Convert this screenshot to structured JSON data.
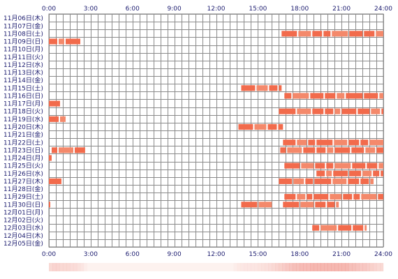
{
  "colors": {
    "activity": "#f26b4c",
    "activity_alt": "#f4896b",
    "grid": "#8a8a8a",
    "label": "#1a1a6e",
    "heat": "#e85a4f"
  },
  "chart_data": {
    "type": "timeline",
    "title": "",
    "x_ticks": [
      "0:00",
      "3:00",
      "6:00",
      "9:00",
      "12:00",
      "15:00",
      "18:00",
      "21:00",
      "24:00"
    ],
    "xlim": [
      0,
      24
    ],
    "grid": true,
    "rows": [
      {
        "label": "11月06日(木)",
        "segments": []
      },
      {
        "label": "11月07日(金)",
        "segments": []
      },
      {
        "label": "11月08日(土)",
        "segments": [
          [
            16.7,
            24.0
          ]
        ]
      },
      {
        "label": "11月09日(日)",
        "segments": [
          [
            0.0,
            2.3
          ]
        ]
      },
      {
        "label": "11月10日(月)",
        "segments": []
      },
      {
        "label": "11月11日(火)",
        "segments": []
      },
      {
        "label": "11月12日(水)",
        "segments": []
      },
      {
        "label": "11月13日(木)",
        "segments": []
      },
      {
        "label": "11月14日(金)",
        "segments": []
      },
      {
        "label": "11月15日(土)",
        "segments": [
          [
            13.8,
            16.7
          ]
        ]
      },
      {
        "label": "11月16日(日)",
        "segments": [
          [
            16.9,
            24.0
          ]
        ]
      },
      {
        "label": "11月17日(月)",
        "segments": [
          [
            0.0,
            0.8
          ]
        ]
      },
      {
        "label": "11月18日(火)",
        "segments": [
          [
            16.5,
            24.0
          ]
        ]
      },
      {
        "label": "11月19日(水)",
        "segments": [
          [
            0.0,
            1.2
          ]
        ]
      },
      {
        "label": "11月20日(木)",
        "segments": [
          [
            13.6,
            16.8
          ]
        ]
      },
      {
        "label": "11月21日(金)",
        "segments": []
      },
      {
        "label": "11月22日(土)",
        "segments": [
          [
            16.8,
            24.0
          ]
        ]
      },
      {
        "label": "11月23日(日)",
        "segments": [
          [
            0.2,
            2.6
          ],
          [
            16.6,
            24.0
          ]
        ]
      },
      {
        "label": "11月24日(月)",
        "segments": [
          [
            0.0,
            0.2
          ]
        ]
      },
      {
        "label": "11月25日(火)",
        "segments": [
          [
            16.9,
            24.0
          ]
        ]
      },
      {
        "label": "11月26日(水)",
        "segments": [
          [
            19.2,
            24.0
          ]
        ]
      },
      {
        "label": "11月27日(木)",
        "segments": [
          [
            0.0,
            0.9
          ],
          [
            16.5,
            23.3
          ]
        ]
      },
      {
        "label": "11月28日(金)",
        "segments": []
      },
      {
        "label": "11月29日(土)",
        "segments": [
          [
            16.9,
            24.0
          ]
        ]
      },
      {
        "label": "11月30日(日)",
        "segments": [
          [
            0.0,
            0.1
          ],
          [
            13.8,
            16.0
          ],
          [
            16.8,
            20.8
          ]
        ]
      },
      {
        "label": "12月01日(月)",
        "segments": []
      },
      {
        "label": "12月02日(火)",
        "segments": []
      },
      {
        "label": "12月03日(水)",
        "segments": [
          [
            18.9,
            22.8
          ]
        ]
      },
      {
        "label": "12月04日(木)",
        "segments": []
      },
      {
        "label": "12月05日(金)",
        "segments": []
      }
    ],
    "heatmap_strip": {
      "type": "heatmap",
      "bins_per_hour": 4,
      "intensity": [
        0.3,
        0.35,
        0.35,
        0.3,
        0.3,
        0.3,
        0.25,
        0.25,
        0.2,
        0.15,
        0.05,
        0,
        0,
        0,
        0,
        0,
        0,
        0,
        0,
        0,
        0,
        0,
        0,
        0,
        0,
        0,
        0,
        0,
        0,
        0,
        0,
        0,
        0,
        0,
        0,
        0,
        0,
        0,
        0,
        0,
        0,
        0,
        0,
        0,
        0,
        0,
        0,
        0,
        0,
        0,
        0,
        0,
        0,
        0.05,
        0.1,
        0.12,
        0.15,
        0.15,
        0.15,
        0.15,
        0.18,
        0.2,
        0.22,
        0.25,
        0.3,
        0.35,
        0.4,
        0.45,
        0.5,
        0.55,
        0.6,
        0.6,
        0.65,
        0.65,
        0.65,
        0.7,
        0.7,
        0.7,
        0.7,
        0.7,
        0.7,
        0.7,
        0.7,
        0.7,
        0.7,
        0.7,
        0.6,
        0.6,
        0.55,
        0.5,
        0.5,
        0.45,
        0.4,
        0.35,
        0.3,
        0.3
      ]
    }
  }
}
